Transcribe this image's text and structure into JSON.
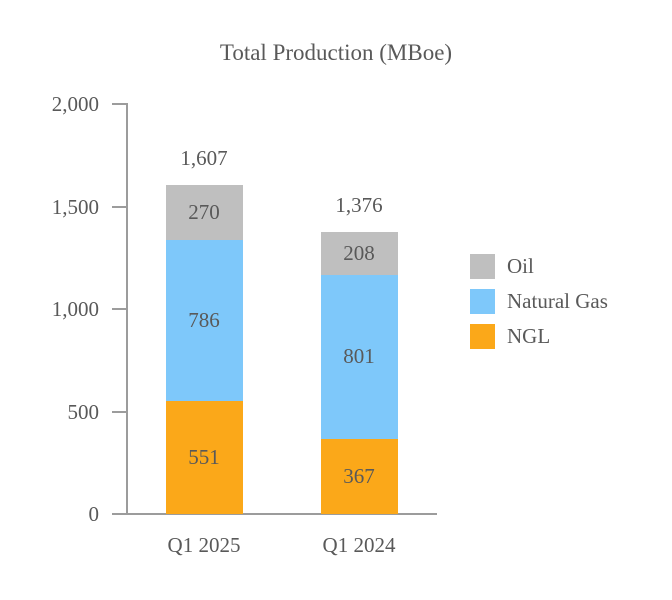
{
  "title": "Total Production (MBoe)",
  "chart_data": {
    "type": "bar",
    "stacked": true,
    "title": "Total Production (MBoe)",
    "categories": [
      "Q1 2025",
      "Q1 2024"
    ],
    "series": [
      {
        "name": "NGL",
        "color": "#FBA819",
        "values": [
          551,
          367
        ]
      },
      {
        "name": "Natural Gas",
        "color": "#7EC8FA",
        "values": [
          786,
          801
        ]
      },
      {
        "name": "Oil",
        "color": "#BFBFBF",
        "values": [
          270,
          208
        ]
      }
    ],
    "totals": [
      1607,
      1376
    ],
    "totals_formatted": [
      "1,607",
      "1,376"
    ],
    "segment_labels": [
      [
        "551",
        "367"
      ],
      [
        "786",
        "801"
      ],
      [
        "270",
        "208"
      ]
    ],
    "ylim": [
      0,
      2000
    ],
    "ytick_interval": 500,
    "yticks": [
      0,
      500,
      1000,
      1500,
      2000
    ],
    "ytick_labels": [
      "0",
      "500",
      "1,000",
      "1,500",
      "2,000"
    ],
    "xlabel": "",
    "ylabel": "",
    "grid": false,
    "legend": {
      "position": "right",
      "entries": [
        "Oil",
        "Natural Gas",
        "NGL"
      ]
    }
  },
  "colors": {
    "text": "#595959",
    "axis": "#9c9c9c",
    "background": "#ffffff"
  }
}
